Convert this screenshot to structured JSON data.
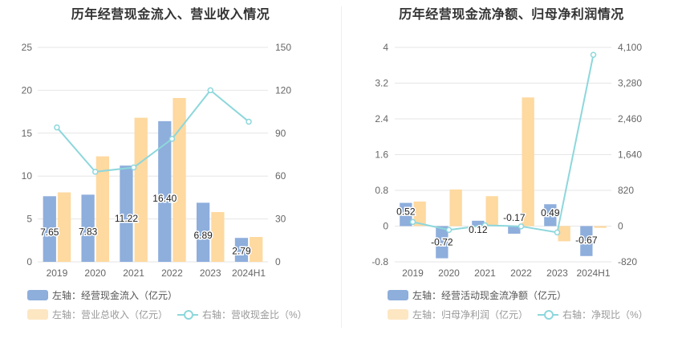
{
  "charts": [
    {
      "title": "历年经营现金流入、营业收入情况",
      "legend": [
        "左轴：经营现金流入（亿元）",
        "左轴：营业总收入（亿元）",
        "右轴：营收现金比（%）"
      ],
      "colors": {
        "bar1": "#8eaedc",
        "bar2": "#fed9a0",
        "line": "#8dd7dc"
      }
    },
    {
      "title": "历年经营现金流净额、归母净利润情况",
      "legend": [
        "左轴：经营活动现金流净额（亿元）",
        "左轴：归母净利润（亿元）",
        "右轴：净现比（%）"
      ],
      "colors": {
        "bar1": "#8eaedc",
        "bar2": "#fed9a0",
        "line": "#8dd7dc"
      }
    }
  ],
  "chart_data": [
    {
      "type": "bar",
      "title": "历年经营现金流入、营业收入情况",
      "categories": [
        "2019",
        "2020",
        "2021",
        "2022",
        "2023",
        "2024H1"
      ],
      "series": [
        {
          "name": "经营现金流入（亿元）",
          "axis": "left",
          "type": "bar",
          "values": [
            7.65,
            7.83,
            11.22,
            16.4,
            6.89,
            2.79
          ],
          "labels": [
            "7.65",
            "7.83",
            "11.22",
            "16.40",
            "6.89",
            "2.79"
          ]
        },
        {
          "name": "营业总收入（亿元）",
          "axis": "left",
          "type": "bar",
          "values": [
            8.1,
            12.3,
            16.8,
            19.1,
            5.8,
            2.9
          ]
        },
        {
          "name": "营收现金比（%）",
          "axis": "right",
          "type": "line",
          "values": [
            94,
            63,
            66,
            86,
            120,
            98
          ]
        }
      ],
      "left_axis": {
        "min": 0,
        "max": 25,
        "ticks": [
          0,
          5,
          10,
          15,
          20,
          25
        ],
        "tick_labels": [
          "0",
          "5",
          "10",
          "15",
          "20",
          "25"
        ]
      },
      "right_axis": {
        "min": 0,
        "max": 150,
        "ticks": [
          0,
          30,
          60,
          90,
          120,
          150
        ],
        "tick_labels": [
          "0",
          "30",
          "60",
          "90",
          "120",
          "150"
        ]
      }
    },
    {
      "type": "bar",
      "title": "历年经营现金流净额、归母净利润情况",
      "categories": [
        "2019",
        "2020",
        "2021",
        "2022",
        "2023",
        "2024H1"
      ],
      "series": [
        {
          "name": "经营活动现金流净额（亿元）",
          "axis": "left",
          "type": "bar",
          "values": [
            0.52,
            -0.72,
            0.12,
            -0.17,
            0.49,
            -0.67
          ],
          "labels": [
            "0.52",
            "-0.72",
            "0.12",
            "-0.17",
            "0.49",
            "-0.67"
          ]
        },
        {
          "name": "归母净利润（亿元）",
          "axis": "left",
          "type": "bar",
          "values": [
            0.55,
            0.82,
            0.67,
            2.88,
            -0.34,
            -0.04
          ]
        },
        {
          "name": "净现比（%）",
          "axis": "right",
          "type": "line",
          "values": [
            95,
            -88,
            18,
            -6,
            -145,
            3930
          ]
        }
      ],
      "left_axis": {
        "min": -0.8,
        "max": 4,
        "ticks": [
          -0.8,
          0,
          0.8,
          1.6,
          2.4,
          3.2,
          4
        ],
        "tick_labels": [
          "-0.8",
          "0",
          "0.8",
          "1.6",
          "2.4",
          "3.2",
          "4"
        ]
      },
      "right_axis": {
        "min": -820,
        "max": 4100,
        "ticks": [
          -820,
          0,
          820,
          1640,
          2460,
          3280,
          4100
        ],
        "tick_labels": [
          "-820",
          "0",
          "820",
          "1,640",
          "2,460",
          "3,280",
          "4,100"
        ]
      }
    }
  ]
}
